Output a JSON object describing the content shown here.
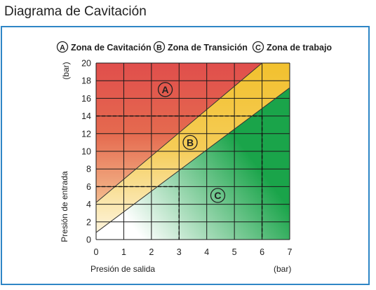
{
  "page": {
    "title": "Diagrama de Cavitación"
  },
  "colors": {
    "frame": "#2f86c6",
    "zone_a": "#e04e4c",
    "zone_b": "#f2c12e",
    "zone_c": "#1aa44a",
    "grid": "#1a1a1a"
  },
  "chart_data": {
    "type": "area",
    "xlabel": "Presión de salida",
    "ylabel": "Presión de entrada",
    "x_unit": "(bar)",
    "y_unit": "(bar)",
    "xlim": [
      0,
      7
    ],
    "ylim": [
      0,
      20
    ],
    "x_ticks": [
      "0",
      "1",
      "2",
      "3",
      "4",
      "5",
      "6",
      "7"
    ],
    "y_ticks": [
      "0",
      "2",
      "4",
      "6",
      "8",
      "10",
      "12",
      "14",
      "16",
      "18",
      "20"
    ],
    "grid": true,
    "legend_position": "top",
    "legend": [
      {
        "marker": "A",
        "name": "Zona de Cavitación",
        "color": "#e04e4c"
      },
      {
        "marker": "B",
        "name": "Zona de Transición",
        "color": "#f2c12e"
      },
      {
        "marker": "C",
        "name": "Zona de trabajo",
        "color": "#1aa44a"
      }
    ],
    "boundaries": [
      {
        "between": [
          "A",
          "B"
        ],
        "x": [
          0,
          6
        ],
        "y": [
          4.2,
          20
        ]
      },
      {
        "between": [
          "B",
          "C"
        ],
        "x": [
          0,
          7
        ],
        "y": [
          0.8,
          17.2
        ]
      }
    ],
    "zone_labels": [
      {
        "marker": "A",
        "x": 2.5,
        "y": 17
      },
      {
        "marker": "B",
        "x": 3.4,
        "y": 11
      },
      {
        "marker": "C",
        "x": 4.4,
        "y": 5
      }
    ],
    "reference_lines": [
      {
        "x": 3,
        "y": 6
      },
      {
        "x": 6,
        "y": 14
      }
    ]
  }
}
